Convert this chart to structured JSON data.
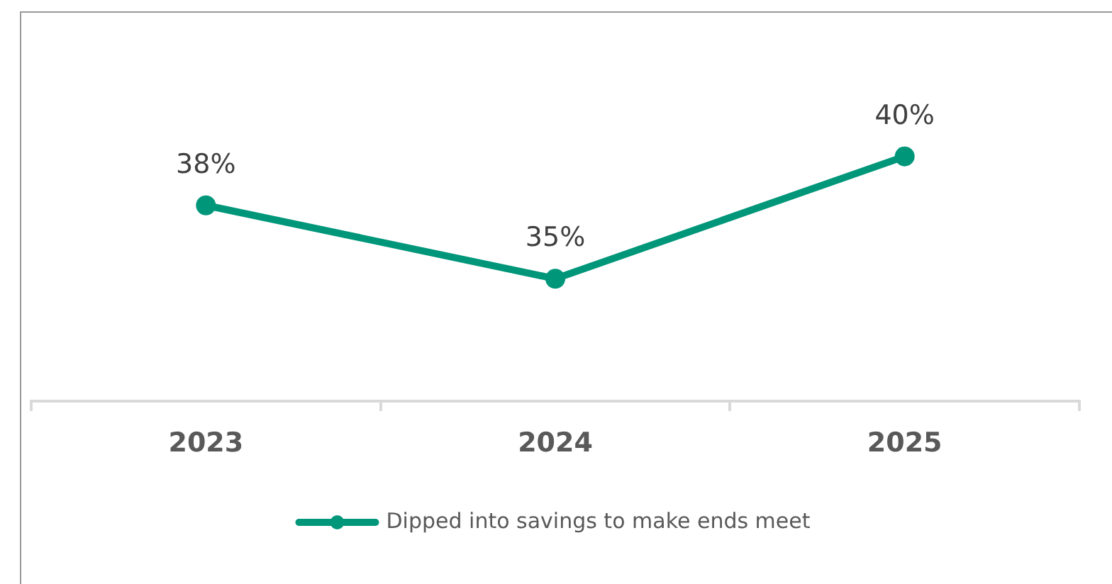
{
  "chart_data": {
    "type": "line",
    "categories": [
      "2023",
      "2024",
      "2025"
    ],
    "series": [
      {
        "name": "Dipped into savings to make ends meet",
        "color": "#00967a",
        "values": [
          38,
          35,
          40
        ],
        "value_labels": [
          "38%",
          "35%",
          "40%"
        ]
      }
    ],
    "legend": "bottom",
    "marker": "circle",
    "line_style": "solid"
  }
}
